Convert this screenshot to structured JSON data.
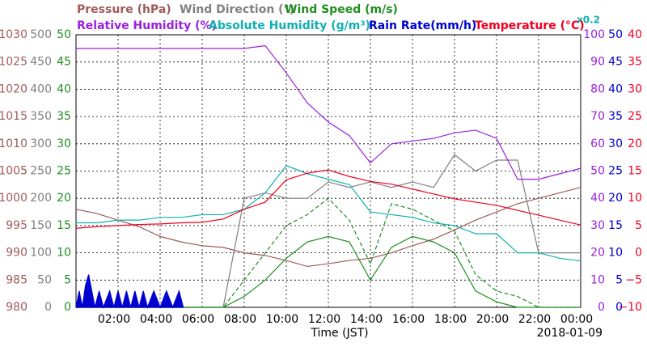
{
  "chart_data": {
    "type": "line",
    "annotation": "x0.2",
    "xlabel": "Time (JST)",
    "date": "2018-01-09",
    "xlim": [
      0,
      24
    ],
    "xticks": [
      {
        "value": 2,
        "label": "02:00"
      },
      {
        "value": 4,
        "label": "04:00"
      },
      {
        "value": 6,
        "label": "06:00"
      },
      {
        "value": 8,
        "label": "08:00"
      },
      {
        "value": 10,
        "label": "10:00"
      },
      {
        "value": 12,
        "label": "12:00"
      },
      {
        "value": 14,
        "label": "14:00"
      },
      {
        "value": 16,
        "label": "16:00"
      },
      {
        "value": 18,
        "label": "18:00"
      },
      {
        "value": 20,
        "label": "20:00"
      },
      {
        "value": 22,
        "label": "22:00"
      },
      {
        "value": 24,
        "label": "00:00"
      }
    ],
    "grid": true,
    "x": [
      0,
      1,
      2,
      3,
      4,
      5,
      6,
      7,
      8,
      9,
      10,
      11,
      12,
      13,
      14,
      15,
      16,
      17,
      18,
      19,
      20,
      21,
      22,
      23,
      24
    ],
    "axes": {
      "pressure": {
        "side": "left",
        "color": "#a05a5a",
        "ylim": [
          980,
          1030
        ],
        "yticks": [
          980,
          985,
          990,
          995,
          1000,
          1005,
          1010,
          1015,
          1020,
          1025,
          1030
        ]
      },
      "direction": {
        "side": "left",
        "color": "#808080",
        "ylim": [
          0,
          500
        ],
        "yticks": [
          0,
          50,
          100,
          150,
          200,
          250,
          300,
          350,
          400,
          450,
          500
        ]
      },
      "speed": {
        "side": "left",
        "color": "#1f8f1f",
        "ylim": [
          0,
          50
        ],
        "yticks": [
          0,
          5,
          10,
          15,
          20,
          25,
          30,
          35,
          40,
          45,
          50
        ]
      },
      "humidity": {
        "side": "right",
        "color": "#9a20e0",
        "ylim": [
          0,
          100
        ],
        "yticks": [
          0,
          10,
          20,
          30,
          40,
          50,
          60,
          70,
          80,
          90,
          100
        ]
      },
      "absolute": {
        "side": "right",
        "color": "#10b0b0",
        "ylim": [
          0,
          10
        ],
        "yticks": []
      },
      "rain": {
        "side": "right",
        "color": "#0000d0",
        "ylim": [
          0,
          50
        ],
        "yticks": [
          0,
          5,
          10,
          15,
          20,
          25,
          30,
          35,
          40,
          45,
          50
        ]
      },
      "temperature": {
        "side": "right",
        "color": "#f00020",
        "ylim": [
          -10,
          40
        ],
        "yticks": [
          {
            "value": -10,
            "label": "−10"
          },
          {
            "value": -5,
            "label": "−5"
          },
          0,
          5,
          10,
          15,
          20,
          25,
          30,
          35,
          40
        ]
      }
    },
    "series": [
      {
        "name": "Pressure (hPa)",
        "axis": "pressure",
        "color": "#a05a5a",
        "values": [
          998,
          997.2,
          996,
          994.8,
          993,
          992,
          991.3,
          991,
          990,
          989.5,
          988.6,
          987.5,
          988,
          988.6,
          989,
          990,
          991.3,
          992.5,
          994.2,
          996,
          997.5,
          999,
          1000,
          1001,
          1002
        ]
      },
      {
        "name": "Wind Direction (°)",
        "axis": "direction",
        "color": "#808080",
        "values": [
          0,
          0,
          0,
          0,
          0,
          0,
          0,
          0,
          200,
          210,
          200,
          200,
          230,
          220,
          230,
          220,
          230,
          220,
          280,
          250,
          270,
          270,
          100,
          100,
          100
        ]
      },
      {
        "name": "Wind Speed (m/s)",
        "axis": "speed",
        "color": "#1f8f1f",
        "values": [
          0,
          0,
          0,
          0,
          0,
          0,
          0,
          0,
          2,
          5,
          9,
          12,
          13,
          12,
          5,
          11,
          13,
          12,
          10,
          3,
          1,
          0,
          0,
          0,
          0
        ]
      },
      {
        "axis": "speed",
        "color": "#1f8f1f",
        "dashed": true,
        "values": [
          0,
          0,
          0,
          0,
          0,
          0,
          0,
          0,
          5,
          10,
          15,
          17,
          20,
          16,
          8,
          19,
          18,
          16,
          14,
          6,
          3,
          2,
          0,
          0,
          0
        ]
      },
      {
        "name": "Relative Humidity (%)",
        "axis": "humidity",
        "color": "#9a20e0",
        "values": [
          95,
          95,
          95,
          95,
          95,
          95,
          95,
          95,
          95,
          96,
          86,
          75,
          68,
          63,
          53,
          60,
          61,
          62,
          64,
          65,
          62,
          47,
          47,
          49,
          51
        ]
      },
      {
        "name": "Absolute Humidity (g/m³)",
        "axis": "absolute",
        "color": "#10b0b0",
        "values": [
          3.1,
          3.1,
          3.2,
          3.2,
          3.3,
          3.3,
          3.4,
          3.4,
          3.6,
          4.2,
          5.2,
          4.9,
          4.7,
          4.5,
          3.5,
          3.4,
          3.3,
          3.1,
          3.0,
          2.7,
          2.7,
          2.0,
          2.0,
          1.8,
          1.7
        ]
      },
      {
        "name": "Rain Rate(mm/h)",
        "axis": "rain",
        "color": "#0000d0",
        "area": true,
        "x": [
          0,
          0.15,
          0.3,
          0.45,
          0.6,
          0.75,
          0.9,
          1.1,
          1.3,
          1.6,
          1.8,
          2.0,
          2.2,
          2.4,
          2.6,
          2.8,
          3.0,
          3.2,
          3.4,
          3.7,
          4.0,
          4.3,
          4.6,
          4.9,
          5.1
        ],
        "values": [
          0,
          3,
          0,
          4,
          6,
          3,
          0,
          3,
          0,
          3,
          0,
          3,
          0,
          3,
          0,
          3,
          0,
          3,
          0,
          3,
          0,
          3,
          0,
          3,
          0
        ]
      },
      {
        "name": "Temperature (°C)",
        "axis": "temperature",
        "color": "#f00020",
        "values": [
          4.5,
          4.8,
          5,
          5.2,
          5.3,
          5.5,
          5.6,
          6.2,
          8,
          9.3,
          13.4,
          14.6,
          15.2,
          14,
          13.1,
          12.6,
          11.7,
          10.8,
          9.9,
          9.3,
          8.7,
          7.8,
          6.9,
          6,
          5.1
        ]
      }
    ]
  }
}
